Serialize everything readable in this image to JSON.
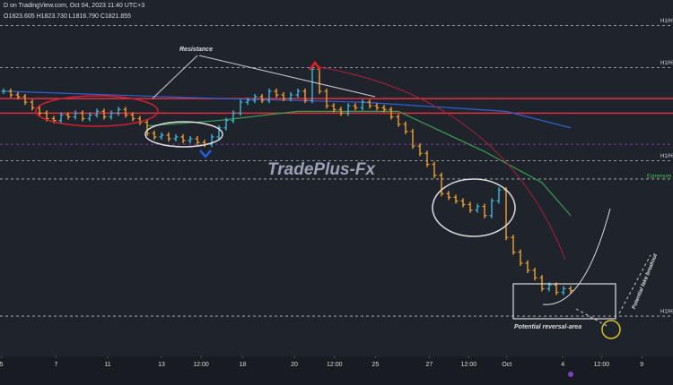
{
  "chart_data": {
    "type": "ohlc",
    "header": "D on TradingView.com, Oct 04, 2023 11:40 UTC+3",
    "ohlc_readout": "O1823.605 H1823.730 L1816.790 C1821.855",
    "watermark": "TradePlus-Fx",
    "annotations": [
      "Resistance",
      "Potential reversal-area",
      "Potential fake breakout",
      "Extremum"
    ],
    "up_color": "#3ab8d8",
    "down_color": "#f0a030",
    "values": [
      1930,
      1928,
      1927,
      1924,
      1921,
      1918,
      1915,
      1914,
      1917,
      1916,
      1918,
      1915,
      1917,
      1919,
      1916,
      1918,
      1920,
      1917,
      1915,
      1913,
      1907,
      1905,
      1906,
      1904,
      1905,
      1903,
      1904,
      1902,
      1901,
      1905,
      1910,
      1914,
      1918,
      1924,
      1925,
      1927,
      1925,
      1930,
      1928,
      1926,
      1928,
      1930,
      1925,
      1942,
      1930,
      1922,
      1920,
      1918,
      1922,
      1921,
      1924,
      1922,
      1921,
      1920,
      1916,
      1912,
      1908,
      1900,
      1896,
      1890,
      1884,
      1874,
      1872,
      1870,
      1868,
      1865,
      1867,
      1862,
      1870,
      1876,
      1850,
      1842,
      1836,
      1832,
      1828,
      1822,
      1824,
      1820,
      1822,
      1821
    ],
    "ylim": [
      1785,
      1975
    ],
    "xlim": [
      -0.5,
      93.25
    ],
    "xticks": [
      {
        "value": -0.3,
        "label": "5"
      },
      {
        "value": 7.3,
        "label": "7"
      },
      {
        "value": 14.5,
        "label": "11"
      },
      {
        "value": 22,
        "label": "13"
      },
      {
        "value": 27.5,
        "label": "12:00"
      },
      {
        "value": 33.3,
        "label": "18"
      },
      {
        "value": 40.5,
        "label": "20"
      },
      {
        "value": 46.1,
        "label": "12:00"
      },
      {
        "value": 51.8,
        "label": "25"
      },
      {
        "value": 59.3,
        "label": "27"
      },
      {
        "value": 64.8,
        "label": "12:00"
      },
      {
        "value": 70.1,
        "label": "Oct"
      },
      {
        "value": 77.9,
        "label": "4"
      },
      {
        "value": 83.3,
        "label": "12:00"
      },
      {
        "value": 88.9,
        "label": "9"
      }
    ],
    "overlays": [
      {
        "color": "#3060d0",
        "x": [
          0,
          30,
          50,
          70,
          79
        ],
        "values": [
          1930,
          1926,
          1924,
          1919,
          1910
        ]
      },
      {
        "color": "#3aa050",
        "x": [
          20,
          30,
          41,
          55,
          67,
          75,
          79
        ],
        "values": [
          1911,
          1914,
          1919,
          1919,
          1897,
          1880,
          1862
        ]
      }
    ],
    "levels": [
      {
        "value": 1966,
        "color": "#bbbbbb",
        "style": "dashed",
        "label": "H1/H"
      },
      {
        "value": 1943,
        "color": "#bbbbbb",
        "style": "dashed",
        "label": "H1/H"
      },
      {
        "value": 1926,
        "color": "#e03040",
        "style": "solid"
      },
      {
        "value": 1918,
        "color": "#e03040",
        "style": "solid"
      },
      {
        "value": 1901,
        "color": "#a040c0",
        "style": "dashed"
      },
      {
        "value": 1892,
        "color": "#bbbbbb",
        "style": "dashed",
        "label": "H1/H"
      },
      {
        "value": 1882,
        "color": "#bbbbbb",
        "style": "dashed"
      },
      {
        "value": 1807,
        "color": "#bbbbbb",
        "style": "dashed",
        "label": "H1/H"
      }
    ]
  }
}
